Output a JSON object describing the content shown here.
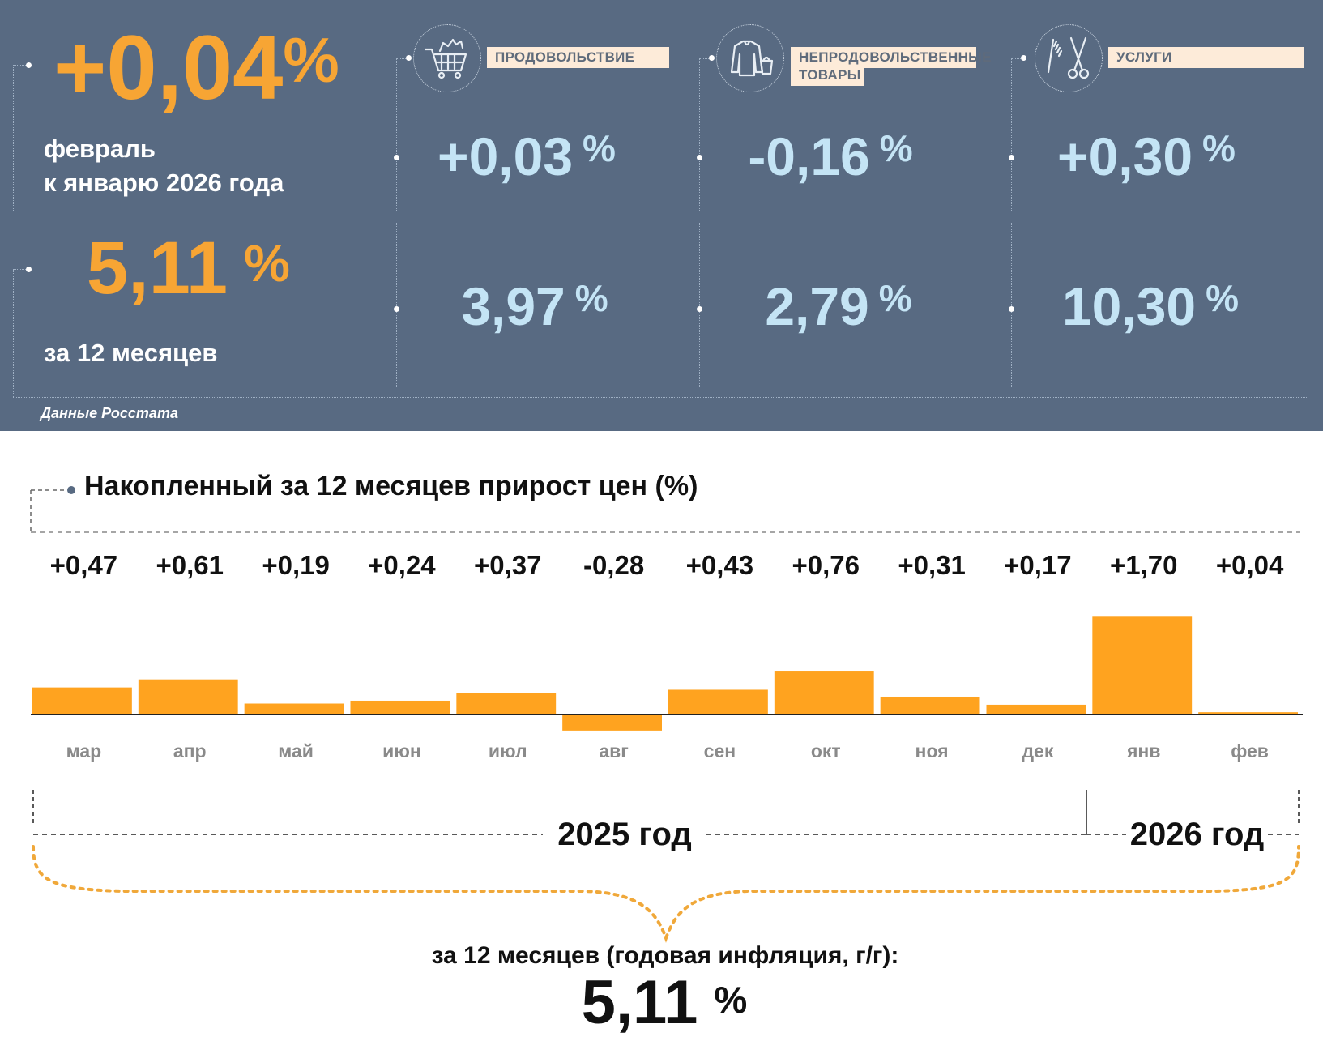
{
  "summary": {
    "monthly_value": "+0,04",
    "monthly_pct": "%",
    "monthly_label_1": "февраль",
    "monthly_label_2": "к январю 2026 года",
    "annual_value": "5,11",
    "annual_pct": "%",
    "annual_label": "за 12 месяцев",
    "source": "Данные Росстата"
  },
  "categories": [
    {
      "name": "ПРОДОВОЛЬСТВИЕ",
      "icon": "shopping-cart-icon",
      "monthly": "+0,03",
      "annual": "3,97",
      "pct": "%"
    },
    {
      "name_1": "НЕПРОДОВОЛЬСТВЕННЫЕ",
      "name_2": "ТОВАРЫ",
      "icon": "clothing-icon",
      "monthly": "-0,16",
      "annual": "2,79",
      "pct": "%"
    },
    {
      "name": "УСЛУГИ",
      "icon": "scissors-comb-icon",
      "monthly": "+0,30",
      "annual": "10,30",
      "pct": "%"
    }
  ],
  "chart_title": "Накопленный за 12 месяцев прирост цен (%)",
  "chart_data": {
    "type": "bar",
    "title": "Накопленный за 12 месяцев прирост цен (%)",
    "categories": [
      "мар",
      "апр",
      "май",
      "июн",
      "июл",
      "авг",
      "сен",
      "окт",
      "ноя",
      "дек",
      "янв",
      "фев"
    ],
    "values": [
      0.47,
      0.61,
      0.19,
      0.24,
      0.37,
      -0.28,
      0.43,
      0.76,
      0.31,
      0.17,
      1.7,
      0.04
    ],
    "value_labels": [
      "+0,47",
      "+0,61",
      "+0,19",
      "+0,24",
      "+0,37",
      "-0,28",
      "+0,43",
      "+0,76",
      "+0,31",
      "+0,17",
      "+1,70",
      "+0,04"
    ],
    "year_groups": [
      {
        "label": "2025 год",
        "months": [
          "мар",
          "апр",
          "май",
          "июн",
          "июл",
          "авг",
          "сен",
          "окт",
          "ноя",
          "дек"
        ]
      },
      {
        "label": "2026 год",
        "months": [
          "янв",
          "фев"
        ]
      }
    ],
    "bar_color": "#ffa31f"
  },
  "bottom": {
    "caption": "за 12 месяцев (годовая инфляция, г/г):",
    "value": "5,11",
    "pct": "%"
  }
}
